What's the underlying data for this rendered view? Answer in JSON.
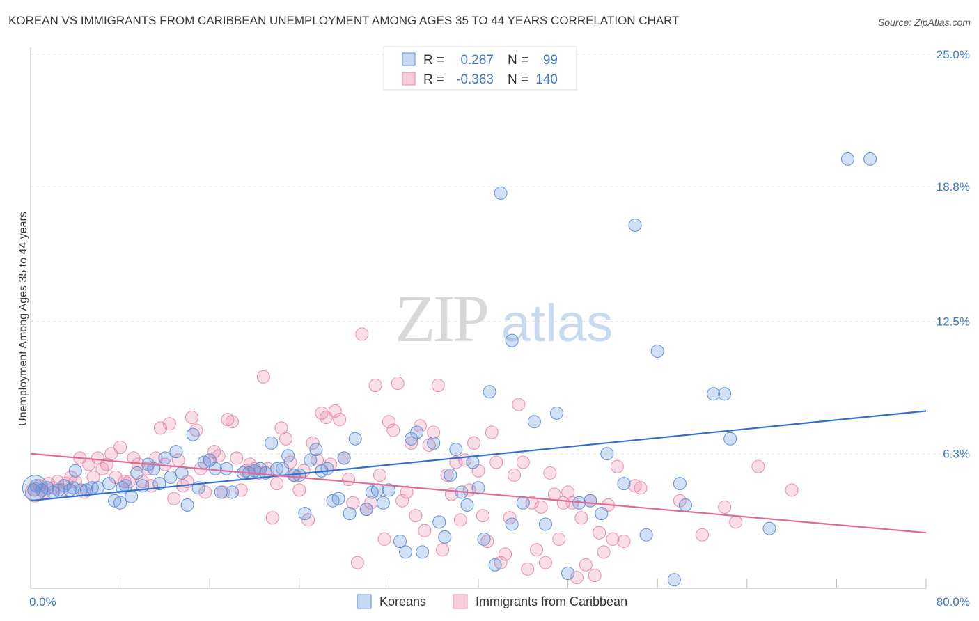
{
  "header": {
    "title": "KOREAN VS IMMIGRANTS FROM CARIBBEAN UNEMPLOYMENT AMONG AGES 35 TO 44 YEARS CORRELATION CHART",
    "source": "Source: ZipAtlas.com"
  },
  "watermark": {
    "zip": "ZIP",
    "atlas": "atlas"
  },
  "legend": {
    "r_label": "R =",
    "n_label": "N =",
    "rows": [
      {
        "r": "0.287",
        "n": "99",
        "color": "#5b8fd6"
      },
      {
        "r": "-0.363",
        "n": "140",
        "color": "#e88aab"
      }
    ]
  },
  "bottom_legend": [
    {
      "label": "Koreans",
      "color": "#5b8fd6"
    },
    {
      "label": "Immigrants from Caribbean",
      "color": "#e88aab"
    }
  ],
  "chart_data": {
    "type": "scatter",
    "title": "KOREAN VS IMMIGRANTS FROM CARIBBEAN UNEMPLOYMENT AMONG AGES 35 TO 44 YEARS CORRELATION CHART",
    "xlabel": "",
    "ylabel": "Unemployment Among Ages 35 to 44 years",
    "xlim": [
      0,
      80
    ],
    "ylim": [
      0,
      25
    ],
    "x_tick_labels": [
      "0.0%",
      "80.0%"
    ],
    "y_ticks": [
      6.3,
      12.5,
      18.8,
      25.0
    ],
    "y_tick_labels": [
      "6.3%",
      "12.5%",
      "18.8%",
      "25.0%"
    ],
    "grid": true,
    "series": [
      {
        "name": "Koreans",
        "color": "#5b8fd6",
        "r": 0.287,
        "n": 99,
        "trend": [
          [
            0,
            4.1
          ],
          [
            80,
            8.3
          ]
        ],
        "points": [
          [
            0.5,
            4.8
          ],
          [
            1,
            4.6
          ],
          [
            1.5,
            4.7
          ],
          [
            2,
            4.5
          ],
          [
            2.5,
            4.6
          ],
          [
            3,
            4.8
          ],
          [
            3.5,
            4.6
          ],
          [
            4,
            5.5
          ],
          [
            4.5,
            4.6
          ],
          [
            5,
            4.6
          ],
          [
            5.5,
            4.7
          ],
          [
            6,
            4.7
          ],
          [
            7,
            4.9
          ],
          [
            7.5,
            4.1
          ],
          [
            8,
            4.0
          ],
          [
            8.5,
            4.8
          ],
          [
            9,
            4.3
          ],
          [
            9.5,
            5.4
          ],
          [
            10,
            4.8
          ],
          [
            10.5,
            5.8
          ],
          [
            11,
            5.6
          ],
          [
            11.5,
            4.9
          ],
          [
            12,
            6.1
          ],
          [
            12.5,
            5.2
          ],
          [
            13,
            6.4
          ],
          [
            13.5,
            5.4
          ],
          [
            14,
            3.9
          ],
          [
            14.5,
            7.2
          ],
          [
            15,
            4.7
          ],
          [
            15.5,
            5.9
          ],
          [
            16,
            6.0
          ],
          [
            16.5,
            5.6
          ],
          [
            17,
            4.5
          ],
          [
            17.5,
            5.6
          ],
          [
            18,
            4.5
          ],
          [
            19,
            5.4
          ],
          [
            19.5,
            5.4
          ],
          [
            20,
            5.5
          ],
          [
            20.5,
            5.6
          ],
          [
            21,
            5.4
          ],
          [
            21.5,
            6.8
          ],
          [
            22,
            5.6
          ],
          [
            22.5,
            5.6
          ],
          [
            23,
            6.2
          ],
          [
            23.5,
            5.3
          ],
          [
            24,
            5.3
          ],
          [
            24.5,
            3.5
          ],
          [
            25,
            6.0
          ],
          [
            25.5,
            6.5
          ],
          [
            26,
            5.5
          ],
          [
            26.5,
            5.6
          ],
          [
            27,
            4.1
          ],
          [
            27.5,
            4.2
          ],
          [
            28,
            6.1
          ],
          [
            28.5,
            3.5
          ],
          [
            29,
            7.0
          ],
          [
            30,
            3.7
          ],
          [
            30.5,
            4.5
          ],
          [
            31,
            4.6
          ],
          [
            31.5,
            4.0
          ],
          [
            32,
            4.6
          ],
          [
            33,
            2.2
          ],
          [
            33.5,
            1.7
          ],
          [
            34,
            7.0
          ],
          [
            34.5,
            7.3
          ],
          [
            35,
            1.7
          ],
          [
            36,
            6.8
          ],
          [
            36.5,
            3.1
          ],
          [
            37,
            2.4
          ],
          [
            37.5,
            5.3
          ],
          [
            38,
            6.5
          ],
          [
            38.5,
            4.5
          ],
          [
            39,
            3.9
          ],
          [
            39.5,
            5.9
          ],
          [
            40,
            4.7
          ],
          [
            40.5,
            2.3
          ],
          [
            41,
            9.2
          ],
          [
            41.5,
            1.1
          ],
          [
            42,
            18.5
          ],
          [
            43,
            11.6
          ],
          [
            43,
            3.0
          ],
          [
            44,
            4.0
          ],
          [
            45,
            7.8
          ],
          [
            46,
            3.0
          ],
          [
            47,
            8.2
          ],
          [
            48,
            0.7
          ],
          [
            49,
            4.0
          ],
          [
            50,
            4.1
          ],
          [
            51,
            3.5
          ],
          [
            51.5,
            6.3
          ],
          [
            53,
            4.9
          ],
          [
            54,
            17.0
          ],
          [
            55,
            2.5
          ],
          [
            56,
            11.1
          ],
          [
            57.5,
            0.4
          ],
          [
            58,
            4.9
          ],
          [
            58.5,
            3.9
          ],
          [
            61,
            9.1
          ],
          [
            62,
            9.1
          ],
          [
            62.5,
            7.0
          ],
          [
            66,
            2.8
          ],
          [
            73,
            20.1
          ],
          [
            75,
            20.1
          ],
          [
            0.3,
            4.6
          ],
          [
            3.8,
            4.7
          ],
          [
            8.2,
            4.7
          ]
        ]
      },
      {
        "name": "Immigrants from Caribbean",
        "color": "#e88aab",
        "r": -0.363,
        "n": 140,
        "trend": [
          [
            0,
            6.3
          ],
          [
            80,
            2.6
          ]
        ],
        "points": [
          [
            0.3,
            4.6
          ],
          [
            0.8,
            4.8
          ],
          [
            1.2,
            4.5
          ],
          [
            1.6,
            4.9
          ],
          [
            2,
            4.7
          ],
          [
            2.4,
            5.0
          ],
          [
            2.8,
            4.6
          ],
          [
            3.2,
            4.9
          ],
          [
            3.6,
            5.2
          ],
          [
            4,
            5.0
          ],
          [
            4.4,
            6.1
          ],
          [
            4.8,
            4.5
          ],
          [
            5.2,
            5.8
          ],
          [
            5.6,
            5.2
          ],
          [
            6,
            6.1
          ],
          [
            6.4,
            5.6
          ],
          [
            6.8,
            5.8
          ],
          [
            7.2,
            6.3
          ],
          [
            7.6,
            5.2
          ],
          [
            8,
            6.6
          ],
          [
            8.4,
            5.0
          ],
          [
            8.8,
            5.0
          ],
          [
            9.2,
            6.1
          ],
          [
            9.6,
            5.8
          ],
          [
            10,
            5.0
          ],
          [
            10.4,
            5.6
          ],
          [
            10.8,
            4.8
          ],
          [
            11.2,
            6.1
          ],
          [
            11.6,
            7.5
          ],
          [
            12,
            5.8
          ],
          [
            12.4,
            7.7
          ],
          [
            12.8,
            4.2
          ],
          [
            13.2,
            6.0
          ],
          [
            13.6,
            4.8
          ],
          [
            14,
            5.0
          ],
          [
            14.4,
            8.0
          ],
          [
            14.8,
            7.4
          ],
          [
            15.2,
            5.6
          ],
          [
            15.6,
            4.5
          ],
          [
            16,
            6.0
          ],
          [
            16.4,
            6.4
          ],
          [
            16.8,
            6.2
          ],
          [
            17.2,
            4.5
          ],
          [
            17.6,
            7.9
          ],
          [
            18,
            7.8
          ],
          [
            18.4,
            6.1
          ],
          [
            18.8,
            4.6
          ],
          [
            19.2,
            5.5
          ],
          [
            19.6,
            5.8
          ],
          [
            20,
            5.6
          ],
          [
            20.4,
            5.4
          ],
          [
            20.8,
            9.9
          ],
          [
            21.2,
            5.6
          ],
          [
            21.6,
            3.3
          ],
          [
            22,
            4.9
          ],
          [
            22.4,
            7.5
          ],
          [
            22.8,
            7.0
          ],
          [
            23.2,
            5.9
          ],
          [
            23.6,
            5.3
          ],
          [
            24,
            4.6
          ],
          [
            24.4,
            5.5
          ],
          [
            24.8,
            3.2
          ],
          [
            25.2,
            6.8
          ],
          [
            25.6,
            6.0
          ],
          [
            26,
            8.2
          ],
          [
            26.4,
            8.0
          ],
          [
            26.8,
            5.8
          ],
          [
            27.2,
            8.3
          ],
          [
            27.6,
            7.9
          ],
          [
            28,
            6.1
          ],
          [
            28.4,
            5.1
          ],
          [
            28.8,
            4.0
          ],
          [
            29.2,
            1.2
          ],
          [
            29.6,
            11.9
          ],
          [
            30,
            3.7
          ],
          [
            30.4,
            4.0
          ],
          [
            30.8,
            9.5
          ],
          [
            31.2,
            5.3
          ],
          [
            31.6,
            2.3
          ],
          [
            32,
            7.8
          ],
          [
            32.4,
            7.4
          ],
          [
            32.8,
            9.6
          ],
          [
            33.2,
            4.1
          ],
          [
            33.6,
            4.5
          ],
          [
            34,
            6.8
          ],
          [
            34.4,
            3.4
          ],
          [
            34.8,
            7.6
          ],
          [
            35.2,
            2.7
          ],
          [
            35.6,
            6.7
          ],
          [
            36,
            7.3
          ],
          [
            36.4,
            9.5
          ],
          [
            36.8,
            1.8
          ],
          [
            37.2,
            5.3
          ],
          [
            37.6,
            4.4
          ],
          [
            38,
            5.9
          ],
          [
            38.4,
            3.2
          ],
          [
            38.8,
            6.0
          ],
          [
            39.2,
            4.6
          ],
          [
            39.6,
            6.8
          ],
          [
            40,
            5.5
          ],
          [
            40.4,
            3.4
          ],
          [
            40.8,
            2.2
          ],
          [
            41.2,
            7.3
          ],
          [
            41.6,
            5.9
          ],
          [
            42,
            1.2
          ],
          [
            42.4,
            1.6
          ],
          [
            42.8,
            3.3
          ],
          [
            43.2,
            5.3
          ],
          [
            43.6,
            8.6
          ],
          [
            44,
            5.9
          ],
          [
            44.4,
            0.9
          ],
          [
            44.8,
            4.0
          ],
          [
            45.2,
            1.8
          ],
          [
            45.6,
            3.8
          ],
          [
            46,
            1.2
          ],
          [
            46.4,
            5.4
          ],
          [
            46.8,
            4.4
          ],
          [
            47.2,
            2.3
          ],
          [
            47.6,
            4.0
          ],
          [
            48,
            4.5
          ],
          [
            48.4,
            4.0
          ],
          [
            48.8,
            0.5
          ],
          [
            49.2,
            3.3
          ],
          [
            49.6,
            1.1
          ],
          [
            50,
            4.1
          ],
          [
            50.4,
            0.6
          ],
          [
            50.8,
            2.6
          ],
          [
            51.2,
            1.7
          ],
          [
            51.6,
            3.9
          ],
          [
            52,
            2.3
          ],
          [
            52.4,
            5.7
          ],
          [
            53,
            2.2
          ],
          [
            54,
            4.8
          ],
          [
            54.5,
            4.7
          ],
          [
            63,
            3.1
          ],
          [
            65,
            5.7
          ],
          [
            68,
            4.6
          ],
          [
            58,
            4.1
          ],
          [
            60,
            2.5
          ],
          [
            62,
            3.8
          ]
        ]
      }
    ]
  }
}
